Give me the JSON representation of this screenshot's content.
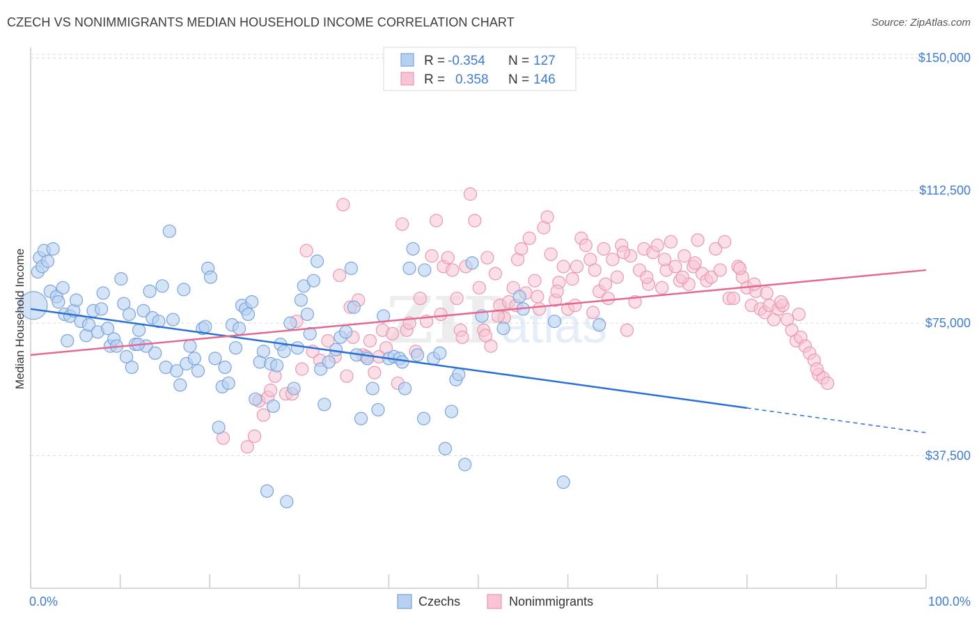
{
  "title": "CZECH VS NONIMMIGRANTS MEDIAN HOUSEHOLD INCOME CORRELATION CHART",
  "source": "Source: ZipAtlas.com",
  "watermark": {
    "part1": "ZIP",
    "part2": "atlas"
  },
  "legend_top": {
    "rows": [
      {
        "r_label": "R =",
        "r_value": "-0.354",
        "n_label": "N =",
        "n_value": "127"
      },
      {
        "r_label": "R =",
        "r_value": "0.358",
        "n_label": "N =",
        "n_value": "146"
      }
    ]
  },
  "legend_bottom": {
    "items": [
      "Czechs",
      "Nonimmigrants"
    ]
  },
  "colors": {
    "blue_fill": "#b8d0f0",
    "blue_stroke": "#7aa4dd",
    "blue_line": "#2a6fd4",
    "pink_fill": "#f8c4d4",
    "pink_stroke": "#eb96b2",
    "pink_line": "#e5688f",
    "axis_text": "#3f7bd0",
    "grid": "#d9d9d9"
  },
  "chart_data": {
    "type": "scatter",
    "title": "CZECH VS NONIMMIGRANTS MEDIAN HOUSEHOLD INCOME CORRELATION CHART",
    "xlabel": "",
    "ylabel": "Median Household Income",
    "x_tick_labels": [
      "0.0%",
      "100.0%"
    ],
    "y_tick_labels": [
      "$37,500",
      "$75,000",
      "$112,500",
      "$150,000"
    ],
    "y_ticks": [
      37500,
      75000,
      112500,
      150000
    ],
    "xlim": [
      0,
      100
    ],
    "ylim": [
      0,
      153000
    ],
    "grid": true,
    "legend_placement": "top-center",
    "series": [
      {
        "name": "Czechs",
        "color": "#7aa4dd",
        "trend": {
          "x0": 0,
          "y0": 79000,
          "x1": 80,
          "y1": 51000,
          "dashed_to_x": 100,
          "dashed_to_y": 44000
        },
        "points": [
          [
            0.3,
            80000
          ],
          [
            0.8,
            89500
          ],
          [
            1,
            93500
          ],
          [
            1.3,
            91000
          ],
          [
            1.5,
            95500
          ],
          [
            1.9,
            92500
          ],
          [
            2.5,
            96000
          ],
          [
            2.2,
            84000
          ],
          [
            2.9,
            82500
          ],
          [
            3.1,
            81000
          ],
          [
            3.6,
            85000
          ],
          [
            3.8,
            77500
          ],
          [
            4.1,
            70000
          ],
          [
            4.4,
            77000
          ],
          [
            4.8,
            78500
          ],
          [
            5.1,
            81500
          ],
          [
            5.6,
            75500
          ],
          [
            6.2,
            71500
          ],
          [
            6.5,
            74500
          ],
          [
            7,
            78500
          ],
          [
            7.5,
            72500
          ],
          [
            7.9,
            79000
          ],
          [
            8.1,
            83500
          ],
          [
            8.6,
            73500
          ],
          [
            8.9,
            68500
          ],
          [
            9.3,
            70500
          ],
          [
            9.6,
            68500
          ],
          [
            10.1,
            87500
          ],
          [
            10.4,
            80500
          ],
          [
            10.7,
            65500
          ],
          [
            11,
            77500
          ],
          [
            11.3,
            62500
          ],
          [
            11.7,
            69000
          ],
          [
            12.1,
            73000
          ],
          [
            12.6,
            78500
          ],
          [
            12.9,
            68500
          ],
          [
            13.3,
            84000
          ],
          [
            13.6,
            76500
          ],
          [
            13.9,
            66500
          ],
          [
            14.3,
            75500
          ],
          [
            14.7,
            85500
          ],
          [
            15.1,
            62500
          ],
          [
            15.5,
            101000
          ],
          [
            15.9,
            76000
          ],
          [
            16.3,
            61500
          ],
          [
            16.7,
            57500
          ],
          [
            17.1,
            84500
          ],
          [
            17.4,
            63500
          ],
          [
            17.8,
            68500
          ],
          [
            18.3,
            65000
          ],
          [
            18.7,
            61500
          ],
          [
            19.2,
            73500
          ],
          [
            19.5,
            74000
          ],
          [
            19.8,
            90500
          ],
          [
            20.1,
            88000
          ],
          [
            20.6,
            65000
          ],
          [
            21,
            45500
          ],
          [
            21.4,
            57000
          ],
          [
            21.7,
            62500
          ],
          [
            22.1,
            58000
          ],
          [
            22.5,
            74500
          ],
          [
            22.9,
            68000
          ],
          [
            23.3,
            73500
          ],
          [
            23.6,
            80000
          ],
          [
            24,
            79000
          ],
          [
            24.3,
            77500
          ],
          [
            24.7,
            81000
          ],
          [
            25.1,
            53500
          ],
          [
            25.6,
            64000
          ],
          [
            26,
            67000
          ],
          [
            26.4,
            27500
          ],
          [
            26.8,
            63500
          ],
          [
            27.1,
            51500
          ],
          [
            27.5,
            63000
          ],
          [
            27.9,
            69000
          ],
          [
            28.3,
            67000
          ],
          [
            28.6,
            24500
          ],
          [
            29,
            75000
          ],
          [
            29.4,
            56500
          ],
          [
            29.8,
            68000
          ],
          [
            30.2,
            81500
          ],
          [
            30.5,
            85500
          ],
          [
            30.9,
            77500
          ],
          [
            31.2,
            72000
          ],
          [
            31.6,
            87000
          ],
          [
            32,
            92500
          ],
          [
            32.4,
            62000
          ],
          [
            32.8,
            52000
          ],
          [
            33.3,
            64000
          ],
          [
            34.1,
            67500
          ],
          [
            34.6,
            71000
          ],
          [
            35.2,
            72500
          ],
          [
            35.8,
            90500
          ],
          [
            36.1,
            79500
          ],
          [
            36.4,
            66000
          ],
          [
            36.9,
            48000
          ],
          [
            37.6,
            65000
          ],
          [
            38.2,
            56500
          ],
          [
            38.8,
            50500
          ],
          [
            39.4,
            77000
          ],
          [
            40,
            65000
          ],
          [
            40.6,
            65500
          ],
          [
            41.2,
            65000
          ],
          [
            41.8,
            56500
          ],
          [
            42.3,
            90500
          ],
          [
            42.7,
            96000
          ],
          [
            43.2,
            66000
          ],
          [
            43.9,
            48000
          ],
          [
            44,
            90000
          ],
          [
            45,
            65000
          ],
          [
            45.7,
            66500
          ],
          [
            46.3,
            39500
          ],
          [
            47,
            50000
          ],
          [
            47.5,
            59000
          ],
          [
            47.8,
            60500
          ],
          [
            48.5,
            35000
          ],
          [
            49.3,
            92000
          ],
          [
            50.4,
            77000
          ],
          [
            52.8,
            73500
          ],
          [
            54.6,
            82500
          ],
          [
            58.5,
            75500
          ],
          [
            59.5,
            30000
          ],
          [
            63.5,
            74500
          ],
          [
            41.5,
            64000
          ],
          [
            55,
            79000
          ],
          [
            12,
            69000
          ]
        ]
      },
      {
        "name": "Nonimmigrants",
        "color": "#eb96b2",
        "trend": {
          "x0": 0,
          "y0": 66000,
          "x1": 100,
          "y1": 90000
        },
        "points": [
          [
            21.5,
            42500
          ],
          [
            24.2,
            40000
          ],
          [
            25,
            43000
          ],
          [
            25.5,
            53000
          ],
          [
            26,
            49000
          ],
          [
            26.5,
            54000
          ],
          [
            26.8,
            56000
          ],
          [
            27.3,
            60000
          ],
          [
            28.5,
            55000
          ],
          [
            29.2,
            55000
          ],
          [
            29.7,
            75500
          ],
          [
            30.3,
            62000
          ],
          [
            30.8,
            95500
          ],
          [
            31.5,
            67000
          ],
          [
            32.3,
            64500
          ],
          [
            33.2,
            70000
          ],
          [
            34,
            65500
          ],
          [
            34.5,
            88500
          ],
          [
            34.9,
            108500
          ],
          [
            35.3,
            60000
          ],
          [
            35.7,
            79500
          ],
          [
            36,
            71000
          ],
          [
            36.6,
            81500
          ],
          [
            37.1,
            66000
          ],
          [
            37.5,
            65500
          ],
          [
            37.9,
            70000
          ],
          [
            38.4,
            61000
          ],
          [
            38.9,
            65500
          ],
          [
            39.3,
            73000
          ],
          [
            39.7,
            68000
          ],
          [
            40.4,
            72000
          ],
          [
            41,
            58000
          ],
          [
            41.5,
            103000
          ],
          [
            42,
            73000
          ],
          [
            42.3,
            75000
          ],
          [
            43,
            67000
          ],
          [
            43.5,
            82000
          ],
          [
            44.2,
            75500
          ],
          [
            44.8,
            94000
          ],
          [
            45.3,
            104000
          ],
          [
            45.8,
            77500
          ],
          [
            46.1,
            91000
          ],
          [
            46.6,
            93500
          ],
          [
            47.1,
            90000
          ],
          [
            47.6,
            82000
          ],
          [
            48,
            73000
          ],
          [
            48.6,
            91000
          ],
          [
            49.1,
            111500
          ],
          [
            49.6,
            104000
          ],
          [
            50.1,
            85000
          ],
          [
            50.6,
            73000
          ],
          [
            51,
            93500
          ],
          [
            51.4,
            68500
          ],
          [
            51.9,
            89000
          ],
          [
            52.4,
            80000
          ],
          [
            52.9,
            76500
          ],
          [
            53.4,
            81000
          ],
          [
            53.9,
            85000
          ],
          [
            54.4,
            93000
          ],
          [
            54.8,
            96000
          ],
          [
            55.3,
            83500
          ],
          [
            55.7,
            99000
          ],
          [
            56.3,
            87000
          ],
          [
            56.6,
            82500
          ],
          [
            57.3,
            102000
          ],
          [
            57.7,
            105000
          ],
          [
            58.1,
            94500
          ],
          [
            58.6,
            81500
          ],
          [
            59,
            86500
          ],
          [
            59.5,
            91000
          ],
          [
            60,
            79000
          ],
          [
            60.5,
            87500
          ],
          [
            61,
            91000
          ],
          [
            61.5,
            99000
          ],
          [
            62,
            97000
          ],
          [
            62.5,
            93000
          ],
          [
            63,
            90000
          ],
          [
            63.5,
            84000
          ],
          [
            64,
            96000
          ],
          [
            64.5,
            82000
          ],
          [
            65,
            93000
          ],
          [
            65.5,
            88000
          ],
          [
            66,
            97000
          ],
          [
            66.6,
            73000
          ],
          [
            67,
            94000
          ],
          [
            67.5,
            81000
          ],
          [
            68,
            90000
          ],
          [
            68.5,
            96000
          ],
          [
            69,
            86000
          ],
          [
            69.5,
            95000
          ],
          [
            70,
            97000
          ],
          [
            70.5,
            85000
          ],
          [
            71,
            90000
          ],
          [
            71.5,
            98000
          ],
          [
            72,
            91000
          ],
          [
            72.5,
            87000
          ],
          [
            73,
            94000
          ],
          [
            73.5,
            86000
          ],
          [
            74,
            91000
          ],
          [
            74.5,
            98500
          ],
          [
            75,
            89000
          ],
          [
            75.5,
            87000
          ],
          [
            76,
            88000
          ],
          [
            76.5,
            96000
          ],
          [
            77,
            90000
          ],
          [
            77.5,
            98000
          ],
          [
            78,
            82000
          ],
          [
            78.5,
            82000
          ],
          [
            79,
            91000
          ],
          [
            79.5,
            88000
          ],
          [
            80,
            85000
          ],
          [
            80.5,
            80000
          ],
          [
            81,
            84000
          ],
          [
            81.5,
            79000
          ],
          [
            82,
            78000
          ],
          [
            82.5,
            80000
          ],
          [
            83,
            76000
          ],
          [
            83.5,
            79000
          ],
          [
            84,
            80000
          ],
          [
            84.5,
            76000
          ],
          [
            85,
            73000
          ],
          [
            85.5,
            70000
          ],
          [
            86,
            71000
          ],
          [
            86.5,
            68500
          ],
          [
            87,
            66500
          ],
          [
            87.5,
            64500
          ],
          [
            88,
            60500
          ],
          [
            88.5,
            59500
          ],
          [
            89,
            58000
          ],
          [
            79.2,
            90500
          ],
          [
            80.8,
            86000
          ],
          [
            82.2,
            83500
          ],
          [
            83.8,
            81000
          ],
          [
            85.8,
            77500
          ],
          [
            87.8,
            62000
          ],
          [
            74.2,
            92000
          ],
          [
            72.8,
            88000
          ],
          [
            70.8,
            93000
          ],
          [
            68.8,
            88000
          ],
          [
            66.2,
            95000
          ],
          [
            64.2,
            86000
          ],
          [
            62.8,
            78000
          ],
          [
            60.8,
            80000
          ],
          [
            58.8,
            84000
          ],
          [
            56.8,
            79000
          ],
          [
            54.2,
            80000
          ],
          [
            52.2,
            77000
          ],
          [
            50.8,
            71500
          ],
          [
            48.2,
            71000
          ]
        ]
      }
    ]
  }
}
